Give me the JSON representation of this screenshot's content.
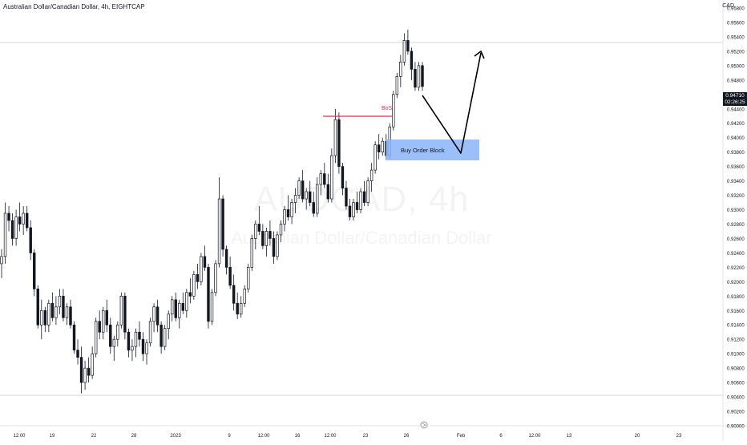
{
  "header": {
    "symbol_title": "Australian Dollar/Canadian Dollar, 4h, EIGHTCAP",
    "currency": "CAD"
  },
  "watermark": {
    "symbol": "AUDCAD, 4h",
    "name": "Australian Dollar/Canadian Dollar"
  },
  "price_tag": {
    "price": "0.94710",
    "countdown": "02:26:25"
  },
  "colors": {
    "candle": "#131722",
    "bos_line": "#e0334f",
    "order_block": "#8ab4f8",
    "grid_line": "#e0e3eb",
    "axis_text": "#131722"
  },
  "chart_data": {
    "type": "candlestick",
    "title": "Australian Dollar/Canadian Dollar, 4h, EIGHTCAP",
    "ylabel": "CAD",
    "ylim": [
      0.9,
      0.958
    ],
    "y_ticks": [
      "0.95800",
      "0.95600",
      "0.95400",
      "0.95200",
      "0.95000",
      "0.94800",
      "0.94600",
      "0.94400",
      "0.94200",
      "0.94000",
      "0.93800",
      "0.93600",
      "0.93400",
      "0.93200",
      "0.93000",
      "0.92800",
      "0.92600",
      "0.92400",
      "0.92200",
      "0.92000",
      "0.91800",
      "0.91600",
      "0.91400",
      "0.91200",
      "0.91000",
      "0.90800",
      "0.90600",
      "0.90400",
      "0.90200",
      "0.90000"
    ],
    "x_ticks": [
      "12:00",
      "19",
      "22",
      "28",
      "2023",
      "9",
      "12:00",
      "16",
      "12:00",
      "23",
      "26",
      "Feb",
      "6",
      "12:00",
      "13",
      "20",
      "23"
    ],
    "candles": [
      [
        0.9225,
        0.9245,
        0.9205,
        0.9235
      ],
      [
        0.9235,
        0.931,
        0.9225,
        0.9295
      ],
      [
        0.9295,
        0.9305,
        0.927,
        0.9285
      ],
      [
        0.9285,
        0.9295,
        0.925,
        0.926
      ],
      [
        0.926,
        0.93,
        0.925,
        0.929
      ],
      [
        0.929,
        0.931,
        0.927,
        0.928
      ],
      [
        0.928,
        0.9305,
        0.9265,
        0.9295
      ],
      [
        0.9295,
        0.9305,
        0.927,
        0.9275
      ],
      [
        0.9275,
        0.9285,
        0.923,
        0.924
      ],
      [
        0.924,
        0.9245,
        0.918,
        0.919
      ],
      [
        0.919,
        0.9195,
        0.9135,
        0.914
      ],
      [
        0.914,
        0.9175,
        0.912,
        0.916
      ],
      [
        0.916,
        0.9165,
        0.913,
        0.914
      ],
      [
        0.914,
        0.9175,
        0.913,
        0.917
      ],
      [
        0.917,
        0.9185,
        0.9145,
        0.915
      ],
      [
        0.915,
        0.918,
        0.914,
        0.9165
      ],
      [
        0.9165,
        0.919,
        0.9155,
        0.918
      ],
      [
        0.918,
        0.919,
        0.9145,
        0.915
      ],
      [
        0.915,
        0.917,
        0.914,
        0.9165
      ],
      [
        0.9165,
        0.9175,
        0.9135,
        0.914
      ],
      [
        0.914,
        0.9145,
        0.91,
        0.9105
      ],
      [
        0.9105,
        0.912,
        0.9085,
        0.9095
      ],
      [
        0.9095,
        0.911,
        0.9045,
        0.906
      ],
      [
        0.906,
        0.909,
        0.905,
        0.908
      ],
      [
        0.908,
        0.9095,
        0.906,
        0.907
      ],
      [
        0.907,
        0.911,
        0.9065,
        0.91
      ],
      [
        0.91,
        0.915,
        0.9095,
        0.9145
      ],
      [
        0.9145,
        0.916,
        0.912,
        0.913
      ],
      [
        0.913,
        0.9165,
        0.912,
        0.916
      ],
      [
        0.916,
        0.9175,
        0.913,
        0.914
      ],
      [
        0.914,
        0.915,
        0.91,
        0.911
      ],
      [
        0.911,
        0.9125,
        0.909,
        0.912
      ],
      [
        0.912,
        0.9145,
        0.911,
        0.914
      ],
      [
        0.914,
        0.9185,
        0.9135,
        0.918
      ],
      [
        0.918,
        0.9185,
        0.912,
        0.913
      ],
      [
        0.913,
        0.9135,
        0.9095,
        0.9105
      ],
      [
        0.9105,
        0.912,
        0.909,
        0.911
      ],
      [
        0.911,
        0.9135,
        0.9095,
        0.913
      ],
      [
        0.913,
        0.9145,
        0.911,
        0.912
      ],
      [
        0.912,
        0.913,
        0.909,
        0.91
      ],
      [
        0.91,
        0.912,
        0.9085,
        0.9115
      ],
      [
        0.9115,
        0.915,
        0.911,
        0.9145
      ],
      [
        0.9145,
        0.917,
        0.913,
        0.9165
      ],
      [
        0.9165,
        0.9175,
        0.913,
        0.914
      ],
      [
        0.914,
        0.9145,
        0.91,
        0.911
      ],
      [
        0.911,
        0.914,
        0.9105,
        0.9135
      ],
      [
        0.9135,
        0.916,
        0.912,
        0.9155
      ],
      [
        0.9155,
        0.918,
        0.9145,
        0.9175
      ],
      [
        0.9175,
        0.9185,
        0.9145,
        0.915
      ],
      [
        0.915,
        0.9175,
        0.9135,
        0.917
      ],
      [
        0.917,
        0.9185,
        0.9155,
        0.916
      ],
      [
        0.916,
        0.919,
        0.915,
        0.9185
      ],
      [
        0.9185,
        0.9205,
        0.917,
        0.918
      ],
      [
        0.918,
        0.9215,
        0.9175,
        0.921
      ],
      [
        0.921,
        0.9225,
        0.919,
        0.92
      ],
      [
        0.92,
        0.924,
        0.9195,
        0.9235
      ],
      [
        0.9235,
        0.925,
        0.9215,
        0.922
      ],
      [
        0.922,
        0.9225,
        0.9135,
        0.9145
      ],
      [
        0.9145,
        0.919,
        0.914,
        0.9185
      ],
      [
        0.9185,
        0.923,
        0.918,
        0.9225
      ],
      [
        0.9225,
        0.9345,
        0.922,
        0.9315
      ],
      [
        0.9315,
        0.932,
        0.9235,
        0.9245
      ],
      [
        0.9245,
        0.925,
        0.921,
        0.922
      ],
      [
        0.922,
        0.9235,
        0.919,
        0.9195
      ],
      [
        0.9195,
        0.921,
        0.916,
        0.917
      ],
      [
        0.917,
        0.9185,
        0.9148,
        0.9155
      ],
      [
        0.9155,
        0.918,
        0.915,
        0.917
      ],
      [
        0.917,
        0.9195,
        0.9165,
        0.919
      ],
      [
        0.919,
        0.9225,
        0.9185,
        0.922
      ],
      [
        0.922,
        0.9265,
        0.9215,
        0.926
      ],
      [
        0.926,
        0.9285,
        0.9245,
        0.928
      ],
      [
        0.928,
        0.9305,
        0.9265,
        0.927
      ],
      [
        0.927,
        0.928,
        0.9245,
        0.925
      ],
      [
        0.925,
        0.9275,
        0.9235,
        0.927
      ],
      [
        0.927,
        0.9285,
        0.925,
        0.926
      ],
      [
        0.926,
        0.927,
        0.9225,
        0.9235
      ],
      [
        0.9235,
        0.927,
        0.923,
        0.9265
      ],
      [
        0.9265,
        0.9285,
        0.9255,
        0.928
      ],
      [
        0.928,
        0.9305,
        0.927,
        0.93
      ],
      [
        0.93,
        0.932,
        0.9285,
        0.929
      ],
      [
        0.929,
        0.9315,
        0.928,
        0.931
      ],
      [
        0.931,
        0.933,
        0.9295,
        0.932
      ],
      [
        0.932,
        0.9345,
        0.9315,
        0.934
      ],
      [
        0.934,
        0.9355,
        0.931,
        0.9315
      ],
      [
        0.9315,
        0.933,
        0.93,
        0.9325
      ],
      [
        0.9325,
        0.934,
        0.9305,
        0.931
      ],
      [
        0.931,
        0.9325,
        0.929,
        0.9295
      ],
      [
        0.9295,
        0.9345,
        0.929,
        0.9335
      ],
      [
        0.9335,
        0.9355,
        0.932,
        0.935
      ],
      [
        0.935,
        0.9365,
        0.933,
        0.9335
      ],
      [
        0.9335,
        0.935,
        0.931,
        0.9315
      ],
      [
        0.9315,
        0.9385,
        0.931,
        0.9375
      ],
      [
        0.9375,
        0.944,
        0.9365,
        0.9425
      ],
      [
        0.9425,
        0.9435,
        0.935,
        0.936
      ],
      [
        0.936,
        0.9365,
        0.932,
        0.933
      ],
      [
        0.933,
        0.934,
        0.93,
        0.9305
      ],
      [
        0.9305,
        0.9315,
        0.9285,
        0.929
      ],
      [
        0.929,
        0.9315,
        0.9285,
        0.931
      ],
      [
        0.931,
        0.9325,
        0.9295,
        0.93
      ],
      [
        0.93,
        0.933,
        0.9295,
        0.9325
      ],
      [
        0.9325,
        0.934,
        0.9305,
        0.931
      ],
      [
        0.931,
        0.9345,
        0.9305,
        0.934
      ],
      [
        0.934,
        0.9365,
        0.9325,
        0.9355
      ],
      [
        0.9355,
        0.9395,
        0.935,
        0.939
      ],
      [
        0.939,
        0.9405,
        0.937,
        0.938
      ],
      [
        0.938,
        0.94,
        0.9375,
        0.9395
      ],
      [
        0.9395,
        0.9405,
        0.937,
        0.9375
      ],
      [
        0.9375,
        0.942,
        0.937,
        0.9415
      ],
      [
        0.9415,
        0.9465,
        0.941,
        0.946
      ],
      [
        0.946,
        0.949,
        0.9455,
        0.9485
      ],
      [
        0.9485,
        0.9515,
        0.947,
        0.9505
      ],
      [
        0.9505,
        0.9545,
        0.95,
        0.9535
      ],
      [
        0.9535,
        0.955,
        0.9515,
        0.952
      ],
      [
        0.952,
        0.9525,
        0.948,
        0.9495
      ],
      [
        0.9495,
        0.9505,
        0.9465,
        0.947
      ],
      [
        0.947,
        0.9505,
        0.9465,
        0.95
      ],
      [
        0.95,
        0.9505,
        0.9465,
        0.9471
      ]
    ]
  },
  "annotations": {
    "bos_label": "BoS",
    "order_block_label": "Buy Order Block"
  }
}
